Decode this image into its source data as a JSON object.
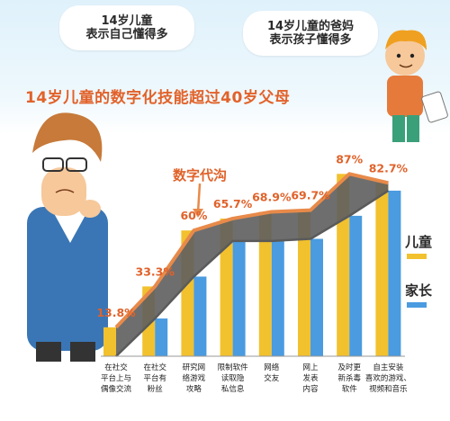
{
  "header": {
    "child_bubble": "14岁儿童\n表示自己懂得多",
    "parent_bubble": "14岁儿童的爸妈\n表示孩子懂得多"
  },
  "chart_data": {
    "type": "bar",
    "title": "14岁儿童的数字化技能超过40岁父母",
    "annotation": "数字代沟",
    "categories": [
      "在社交平台上与偶像交流",
      "在社交平台有粉丝",
      "研究网络游戏攻略",
      "限制软件读取隐私信息",
      "网络交友",
      "网上发表内容",
      "及时更新杀毒软件",
      "自主安装喜欢的游戏、视频和音乐"
    ],
    "category_lines": [
      [
        "在社交",
        "平台上与",
        "偶像交流"
      ],
      [
        "在社交",
        "平台有",
        "粉丝"
      ],
      [
        "研究网",
        "络游戏",
        "攻略"
      ],
      [
        "限制软件",
        "读取隐",
        "私信息"
      ],
      [
        "网络",
        "交友"
      ],
      [
        "网上",
        "发表",
        "内容"
      ],
      [
        "及时更",
        "新杀毒",
        "软件"
      ],
      [
        "自主安装",
        "喜欢的游戏、",
        "视频和音乐"
      ]
    ],
    "series": [
      {
        "name": "儿童",
        "color": "#f2c12e",
        "values": [
          13.8,
          33.3,
          60,
          65.7,
          68.9,
          69.7,
          87,
          82.7
        ],
        "value_labels": [
          "13.8%",
          "33.3%",
          "60%",
          "65.7%",
          "68.9%",
          "69.7%",
          "87%",
          "82.7%"
        ]
      },
      {
        "name": "家长",
        "color": "#4a9be0",
        "values": [
          0,
          18,
          38,
          55,
          55,
          56,
          67,
          79
        ]
      }
    ],
    "ylim": [
      0,
      100
    ],
    "legend_position": "right",
    "gap_band_color": "#5e5e5e",
    "child_line_color": "#e88a4a",
    "parent_line_color": "#5a5a5a"
  }
}
